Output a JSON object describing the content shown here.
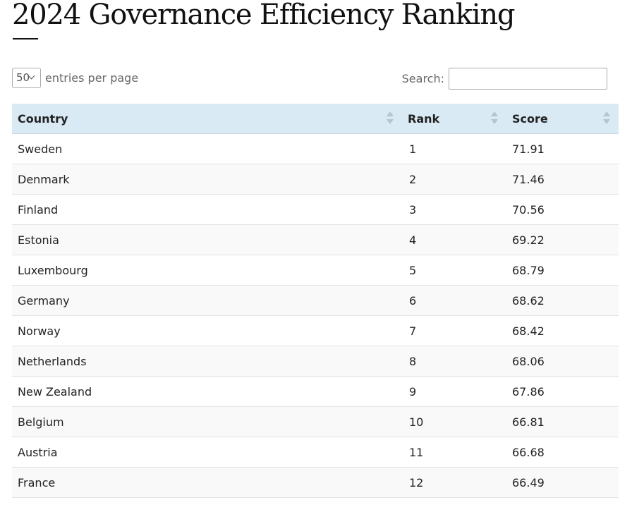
{
  "page": {
    "title": "2024 Governance Efficiency Ranking"
  },
  "controls": {
    "page_length_value": "50",
    "page_length_label": "entries per page",
    "search_label": "Search:",
    "search_value": ""
  },
  "table": {
    "columns": [
      "Country",
      "Rank",
      "Score"
    ],
    "rows": [
      {
        "country": "Sweden",
        "rank": "1",
        "score": "71.91"
      },
      {
        "country": "Denmark",
        "rank": "2",
        "score": "71.46"
      },
      {
        "country": "Finland",
        "rank": "3",
        "score": "70.56"
      },
      {
        "country": "Estonia",
        "rank": "4",
        "score": "69.22"
      },
      {
        "country": "Luxembourg",
        "rank": "5",
        "score": "68.79"
      },
      {
        "country": "Germany",
        "rank": "6",
        "score": "68.62"
      },
      {
        "country": "Norway",
        "rank": "7",
        "score": "68.42"
      },
      {
        "country": "Netherlands",
        "rank": "8",
        "score": "68.06"
      },
      {
        "country": "New Zealand",
        "rank": "9",
        "score": "67.86"
      },
      {
        "country": "Belgium",
        "rank": "10",
        "score": "66.81"
      },
      {
        "country": "Austria",
        "rank": "11",
        "score": "66.68"
      },
      {
        "country": "France",
        "rank": "12",
        "score": "66.49"
      }
    ]
  },
  "icons": {
    "sort": "sort-both-icon",
    "dropdown": "chevron-down-icon"
  },
  "colors": {
    "header_bg": "#d9eaf5",
    "stripe_bg": "#f9f9f9",
    "sort_icon": "#b7c4cf"
  }
}
